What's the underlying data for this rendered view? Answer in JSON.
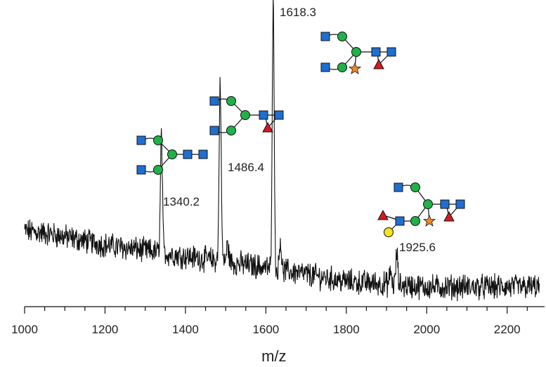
{
  "chart_data": {
    "type": "line",
    "xlabel": "m/z",
    "ylabel": "",
    "xlim": [
      1000,
      2280
    ],
    "x_ticks": [
      1000,
      1200,
      1400,
      1600,
      1800,
      2000,
      2200
    ],
    "x_tick_labels": [
      "1000",
      "1200",
      "1400",
      "1600",
      "1800",
      "2000",
      "2200"
    ],
    "grid": false,
    "series": [
      {
        "baseline": [
          [
            1000,
            0.27
          ],
          [
            1060,
            0.26
          ],
          [
            1200,
            0.22
          ],
          [
            1400,
            0.18
          ],
          [
            1600,
            0.14
          ],
          [
            1800,
            0.09
          ],
          [
            2000,
            0.07
          ],
          [
            2280,
            0.07
          ]
        ],
        "peaks": [
          {
            "mz": 1340.2,
            "height": 0.42
          },
          {
            "mz": 1486.4,
            "height": 0.64
          },
          {
            "mz": 1618.3,
            "height": 1.0
          },
          {
            "mz": 1925.6,
            "height": 0.11
          }
        ]
      }
    ],
    "peak_labels": [
      {
        "mz": 1340.2,
        "text": "1340.2"
      },
      {
        "mz": 1486.4,
        "text": "1486.4"
      },
      {
        "mz": 1618.3,
        "text": "1618.3"
      },
      {
        "mz": 1925.6,
        "text": "1925.6"
      }
    ],
    "glycan_icons": [
      "glycan-1340-icon",
      "glycan-1486-icon",
      "glycan-1618-icon",
      "glycan-1925-icon"
    ],
    "colors": {
      "trace": "#111111",
      "glcnac_square": "#1f6fd1",
      "mannose_circle": "#1fb24a",
      "fucose_triangle": "#d7191c",
      "sialic_star": "#f08a24",
      "galactose_circle": "#f5e31b"
    }
  }
}
